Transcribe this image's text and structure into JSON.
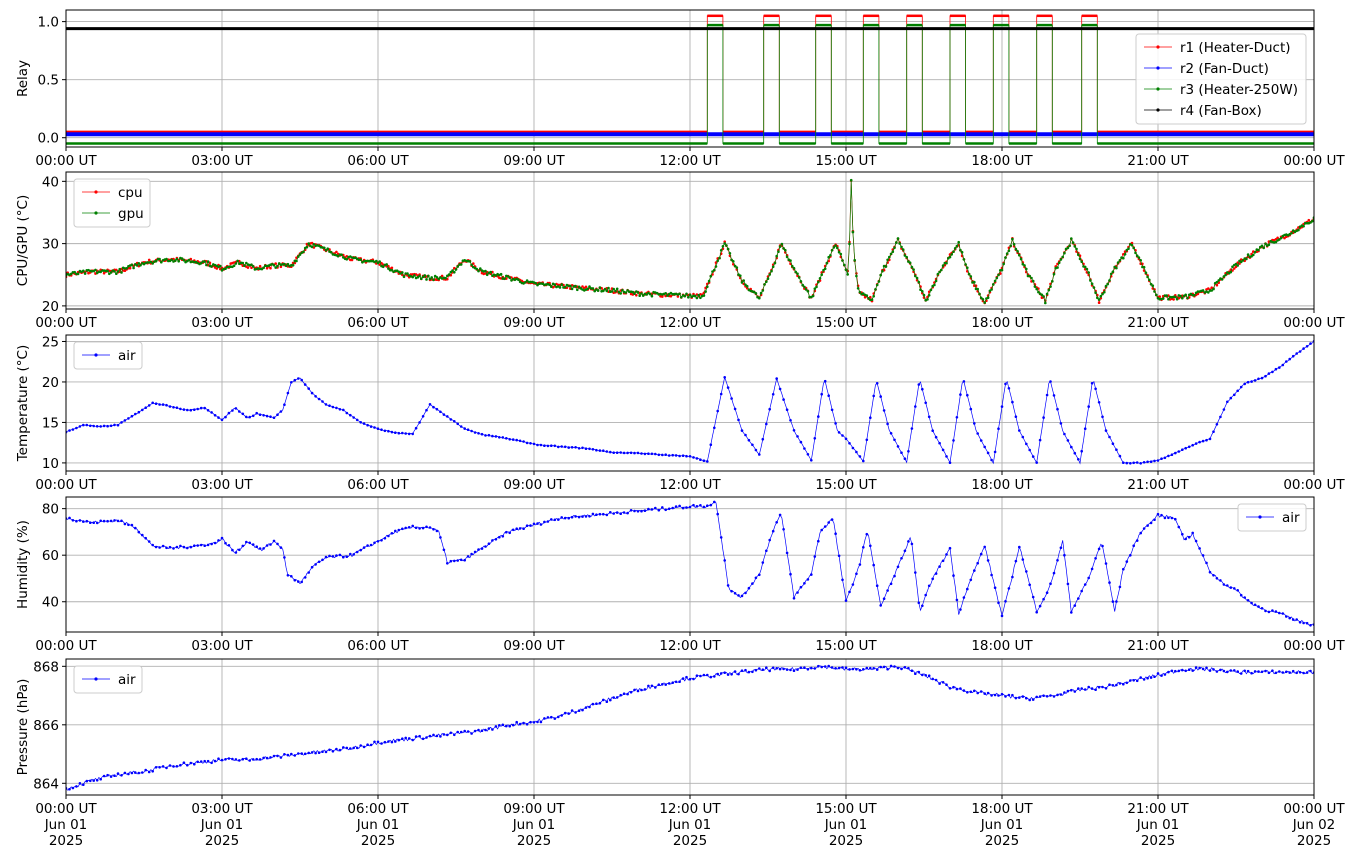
{
  "chart_data": [
    {
      "type": "line",
      "ylabel": "Relay",
      "ylim": [
        -0.08,
        1.1
      ],
      "yticks": [
        0.0,
        0.5,
        1.0
      ],
      "ytick_labels": [
        "0.0",
        "0.5",
        "1.0"
      ],
      "xticks": [
        "00:00",
        "03:00",
        "06:00",
        "09:00",
        "12:00",
        "15:00",
        "18:00",
        "21:00",
        "24:00"
      ],
      "xtick_labels": [
        "00:00 UT",
        "03:00 UT",
        "06:00 UT",
        "09:00 UT",
        "12:00 UT",
        "15:00 UT",
        "18:00 UT",
        "21:00 UT",
        "00:00 UT"
      ],
      "xlim": [
        "00:00",
        "24:00"
      ],
      "grid": true,
      "legend_position": "center-right",
      "on_periods": [
        [
          "12:20",
          "12:38"
        ],
        [
          "13:25",
          "13:43"
        ],
        [
          "14:25",
          "14:43"
        ],
        [
          "15:20",
          "15:38"
        ],
        [
          "16:10",
          "16:28"
        ],
        [
          "17:00",
          "17:18"
        ],
        [
          "17:50",
          "18:08"
        ],
        [
          "18:40",
          "18:58"
        ],
        [
          "19:32",
          "19:50"
        ]
      ],
      "series": [
        {
          "name": "r1 (Heater-Duct)",
          "color": "#ff0000",
          "off_value": 0.05,
          "on_value": 1.05,
          "switched": true
        },
        {
          "name": "r2 (Fan-Duct)",
          "color": "#0000ff",
          "off_value": 0.03,
          "on_value": 0.03,
          "switched": false
        },
        {
          "name": "r3 (Heater-250W)",
          "color": "#008000",
          "off_value": -0.05,
          "on_value": 0.97,
          "switched": true
        },
        {
          "name": "r4 (Fan-Box)",
          "color": "#000000",
          "off_value": 0.94,
          "on_value": 0.94,
          "switched": false
        }
      ]
    },
    {
      "type": "line",
      "ylabel": "CPU/GPU (°C)",
      "ylim": [
        19.5,
        41.5
      ],
      "yticks": [
        20,
        30,
        40
      ],
      "ytick_labels": [
        "20",
        "30",
        "40"
      ],
      "xtick_labels": [
        "00:00 UT",
        "03:00 UT",
        "06:00 UT",
        "09:00 UT",
        "12:00 UT",
        "15:00 UT",
        "18:00 UT",
        "21:00 UT",
        "00:00 UT"
      ],
      "grid": true,
      "legend_position": "upper-left",
      "series": [
        {
          "name": "cpu",
          "color": "#ff0000",
          "x": [
            "00:00",
            "00:30",
            "01:00",
            "01:30",
            "02:00",
            "02:40",
            "03:00",
            "03:20",
            "03:40",
            "04:00",
            "04:20",
            "04:40",
            "05:00",
            "05:30",
            "06:00",
            "06:30",
            "07:00",
            "07:20",
            "07:40",
            "08:00",
            "08:30",
            "09:00",
            "09:30",
            "10:00",
            "10:30",
            "11:00",
            "11:30",
            "12:00",
            "12:15",
            "12:40",
            "13:00",
            "13:20",
            "13:35",
            "13:45",
            "14:00",
            "14:20",
            "14:35",
            "14:48",
            "15:00",
            "15:03",
            "15:06",
            "15:09",
            "15:15",
            "15:30",
            "15:42",
            "16:00",
            "16:20",
            "16:32",
            "16:50",
            "17:10",
            "17:22",
            "17:40",
            "18:00",
            "18:12",
            "18:30",
            "18:50",
            "19:02",
            "19:20",
            "19:40",
            "19:52",
            "20:10",
            "20:30",
            "21:00",
            "21:30",
            "22:00",
            "22:30",
            "23:00",
            "23:30",
            "24:00"
          ],
          "values": [
            25,
            25.5,
            25.5,
            27,
            27.5,
            27,
            26,
            27,
            26,
            26.5,
            26.5,
            30,
            29,
            27.5,
            27,
            25,
            24.5,
            24.5,
            27.5,
            25.5,
            24.5,
            23.5,
            23.2,
            22.8,
            22.5,
            22,
            21.8,
            21.6,
            21.6,
            30,
            24,
            21.2,
            26,
            30,
            26,
            21.2,
            26,
            30,
            26,
            25,
            40,
            28,
            22,
            21,
            25.5,
            30.5,
            25,
            20.8,
            26,
            30,
            25,
            20.5,
            26,
            30.5,
            25,
            20.8,
            26,
            30.5,
            25,
            20.8,
            26,
            30,
            21.3,
            21.4,
            22.5,
            26.5,
            29.5,
            31.5,
            34
          ]
        },
        {
          "name": "gpu",
          "color": "#008000",
          "x": [
            "00:00",
            "00:30",
            "01:00",
            "01:30",
            "02:00",
            "02:40",
            "03:00",
            "03:20",
            "03:40",
            "04:00",
            "04:20",
            "04:40",
            "05:00",
            "05:30",
            "06:00",
            "06:30",
            "07:00",
            "07:20",
            "07:40",
            "08:00",
            "08:30",
            "09:00",
            "09:30",
            "10:00",
            "10:30",
            "11:00",
            "11:30",
            "12:00",
            "12:15",
            "12:40",
            "13:00",
            "13:20",
            "13:35",
            "13:45",
            "14:00",
            "14:20",
            "14:35",
            "14:48",
            "15:00",
            "15:03",
            "15:06",
            "15:09",
            "15:15",
            "15:30",
            "15:42",
            "16:00",
            "16:20",
            "16:32",
            "16:50",
            "17:10",
            "17:22",
            "17:40",
            "18:00",
            "18:12",
            "18:30",
            "18:50",
            "19:02",
            "19:20",
            "19:40",
            "19:52",
            "20:10",
            "20:30",
            "21:00",
            "21:30",
            "22:00",
            "22:30",
            "23:00",
            "23:30",
            "24:00"
          ],
          "values": [
            25,
            25.5,
            25.5,
            27,
            27.5,
            27,
            26,
            27,
            26,
            26.5,
            26.5,
            30,
            29,
            27.5,
            27,
            25,
            24.5,
            24.5,
            27.5,
            25.5,
            24.5,
            23.5,
            23.2,
            22.8,
            22.5,
            22,
            21.8,
            21.6,
            21.6,
            30,
            24,
            21.2,
            26,
            30,
            26,
            21.2,
            26,
            30,
            26,
            25,
            40,
            28,
            22,
            21,
            25.5,
            30.5,
            25,
            20.8,
            26,
            30,
            25,
            20.5,
            26,
            30.5,
            25,
            20.8,
            26,
            30.5,
            25,
            20.8,
            26,
            30,
            21.3,
            21.4,
            22.5,
            26.5,
            29.5,
            31.5,
            34
          ]
        }
      ]
    },
    {
      "type": "line",
      "ylabel": "Temperature (°C)",
      "ylim": [
        9,
        25.8
      ],
      "yticks": [
        10,
        15,
        20,
        25
      ],
      "ytick_labels": [
        "10",
        "15",
        "20",
        "25"
      ],
      "xtick_labels": [
        "00:00 UT",
        "03:00 UT",
        "06:00 UT",
        "09:00 UT",
        "12:00 UT",
        "15:00 UT",
        "18:00 UT",
        "21:00 UT",
        "00:00 UT"
      ],
      "grid": true,
      "legend_position": "upper-left",
      "series": [
        {
          "name": "air",
          "color": "#0000ff",
          "x": [
            "00:00",
            "00:20",
            "00:40",
            "01:00",
            "01:20",
            "01:40",
            "02:00",
            "02:20",
            "02:40",
            "03:00",
            "03:15",
            "03:30",
            "03:40",
            "04:00",
            "04:10",
            "04:20",
            "04:30",
            "04:45",
            "05:00",
            "05:20",
            "05:40",
            "06:00",
            "06:20",
            "06:40",
            "07:00",
            "07:20",
            "07:40",
            "08:00",
            "08:20",
            "08:40",
            "09:00",
            "09:30",
            "10:00",
            "10:30",
            "11:00",
            "11:30",
            "12:00",
            "12:20",
            "12:40",
            "13:00",
            "13:20",
            "13:40",
            "14:00",
            "14:20",
            "14:35",
            "14:50",
            "15:00",
            "15:20",
            "15:35",
            "15:50",
            "16:10",
            "16:25",
            "16:40",
            "17:00",
            "17:15",
            "17:30",
            "17:50",
            "18:05",
            "18:20",
            "18:40",
            "18:55",
            "19:10",
            "19:30",
            "19:45",
            "20:00",
            "20:20",
            "20:40",
            "21:00",
            "21:20",
            "21:40",
            "22:00",
            "22:20",
            "22:40",
            "23:00",
            "23:20",
            "23:40",
            "24:00"
          ],
          "values": [
            13.8,
            14.7,
            14.5,
            14.7,
            16,
            17.4,
            17,
            16.5,
            16.8,
            15.3,
            16.8,
            15.5,
            16.1,
            15.6,
            16.5,
            20,
            20.5,
            18.5,
            17.2,
            16.5,
            15,
            14.2,
            13.7,
            13.6,
            17.2,
            15.7,
            14.2,
            13.5,
            13.2,
            12.8,
            12.3,
            12,
            11.8,
            11.3,
            11.2,
            11,
            10.8,
            10.2,
            20.6,
            14,
            11,
            20.4,
            14,
            10.3,
            20.5,
            14,
            13,
            10.2,
            20.3,
            14,
            10.1,
            20.4,
            14,
            10,
            20.5,
            14,
            10,
            20.5,
            14,
            10,
            20.5,
            14,
            10,
            20.5,
            14,
            10,
            10,
            10.3,
            11.2,
            12.2,
            13,
            17.5,
            19.8,
            20.5,
            21.8,
            23.5,
            25
          ]
        }
      ]
    },
    {
      "type": "line",
      "ylabel": "Humidity (%)",
      "ylim": [
        27,
        85
      ],
      "yticks": [
        40,
        60,
        80
      ],
      "ytick_labels": [
        "40",
        "60",
        "80"
      ],
      "xtick_labels": [
        "00:00 UT",
        "03:00 UT",
        "06:00 UT",
        "09:00 UT",
        "12:00 UT",
        "15:00 UT",
        "18:00 UT",
        "21:00 UT",
        "00:00 UT"
      ],
      "grid": true,
      "legend_position": "upper-right",
      "series": [
        {
          "name": "air",
          "color": "#0000ff",
          "x": [
            "00:00",
            "00:30",
            "01:00",
            "01:20",
            "01:40",
            "02:00",
            "02:30",
            "02:50",
            "03:00",
            "03:15",
            "03:30",
            "03:45",
            "04:00",
            "04:10",
            "04:15",
            "04:30",
            "04:45",
            "05:00",
            "05:30",
            "06:00",
            "06:20",
            "06:40",
            "07:00",
            "07:10",
            "07:20",
            "07:40",
            "08:00",
            "08:30",
            "09:00",
            "09:30",
            "10:00",
            "10:30",
            "11:00",
            "11:30",
            "12:00",
            "12:20",
            "12:30",
            "12:45",
            "13:00",
            "13:20",
            "13:35",
            "13:45",
            "14:00",
            "14:20",
            "14:30",
            "14:45",
            "15:00",
            "15:15",
            "15:25",
            "15:40",
            "16:00",
            "16:15",
            "16:25",
            "16:40",
            "17:00",
            "17:10",
            "17:20",
            "17:40",
            "18:00",
            "18:10",
            "18:20",
            "18:40",
            "18:55",
            "19:10",
            "19:20",
            "19:40",
            "19:55",
            "20:10",
            "20:20",
            "20:40",
            "21:00",
            "21:20",
            "21:30",
            "21:40",
            "22:00",
            "22:15",
            "22:30",
            "22:45",
            "23:00",
            "23:20",
            "23:40",
            "24:00"
          ],
          "values": [
            76,
            74,
            75,
            72,
            64,
            63,
            64,
            65,
            67,
            61,
            66,
            62,
            66,
            63,
            52,
            48,
            55,
            59,
            60,
            66,
            70,
            72,
            72,
            70,
            57,
            58,
            63,
            70,
            73,
            76,
            77,
            78,
            79,
            80,
            81,
            81,
            83,
            45,
            42,
            52,
            70,
            78,
            42,
            52,
            70,
            76,
            40,
            55,
            71,
            38,
            55,
            68,
            36,
            50,
            63,
            35,
            46,
            64,
            34,
            48,
            64,
            36,
            46,
            66,
            36,
            50,
            66,
            36,
            54,
            70,
            77,
            76,
            67,
            69,
            53,
            48,
            45,
            40,
            37,
            35,
            32,
            30
          ]
        }
      ]
    },
    {
      "type": "line",
      "ylabel": "Pressure (hPa)",
      "ylim": [
        863.6,
        868.25
      ],
      "yticks": [
        864,
        866,
        868
      ],
      "ytick_labels": [
        "864",
        "866",
        "868"
      ],
      "xtick_labels": [
        "00:00 UT",
        "03:00 UT",
        "06:00 UT",
        "09:00 UT",
        "12:00 UT",
        "15:00 UT",
        "18:00 UT",
        "21:00 UT",
        "00:00 UT"
      ],
      "xtick_sublabels": [
        "Jun 01",
        "Jun 01",
        "Jun 01",
        "Jun 01",
        "Jun 01",
        "Jun 01",
        "Jun 01",
        "Jun 01",
        "Jun 02"
      ],
      "xtick_years": [
        "2025",
        "2025",
        "2025",
        "2025",
        "2025",
        "2025",
        "2025",
        "2025",
        "2025"
      ],
      "grid": true,
      "legend_position": "upper-left",
      "series": [
        {
          "name": "air",
          "color": "#0000ff",
          "x": [
            "00:00",
            "00:30",
            "01:00",
            "01:30",
            "02:00",
            "02:30",
            "03:00",
            "03:30",
            "04:00",
            "04:30",
            "05:00",
            "05:30",
            "06:00",
            "06:30",
            "07:00",
            "07:30",
            "08:00",
            "08:30",
            "09:00",
            "09:30",
            "10:00",
            "10:30",
            "11:00",
            "11:30",
            "12:00",
            "12:30",
            "13:00",
            "13:30",
            "14:00",
            "14:30",
            "15:00",
            "15:30",
            "16:00",
            "16:30",
            "17:00",
            "17:30",
            "18:00",
            "18:30",
            "19:00",
            "19:30",
            "20:00",
            "20:30",
            "21:00",
            "21:30",
            "22:00",
            "22:30",
            "23:00",
            "23:30",
            "24:00"
          ],
          "values": [
            863.8,
            864.1,
            864.3,
            864.4,
            864.6,
            864.7,
            864.8,
            864.8,
            864.9,
            865.0,
            865.1,
            865.2,
            865.4,
            865.5,
            865.6,
            865.7,
            865.8,
            866.0,
            866.1,
            866.3,
            866.6,
            866.9,
            867.2,
            867.4,
            867.6,
            867.7,
            867.8,
            867.9,
            867.9,
            868.0,
            867.9,
            867.9,
            868.0,
            867.7,
            867.3,
            867.1,
            867.0,
            866.9,
            867.0,
            867.2,
            867.3,
            867.5,
            867.7,
            867.9,
            867.9,
            867.8,
            867.8,
            867.8,
            867.8
          ]
        }
      ]
    }
  ]
}
